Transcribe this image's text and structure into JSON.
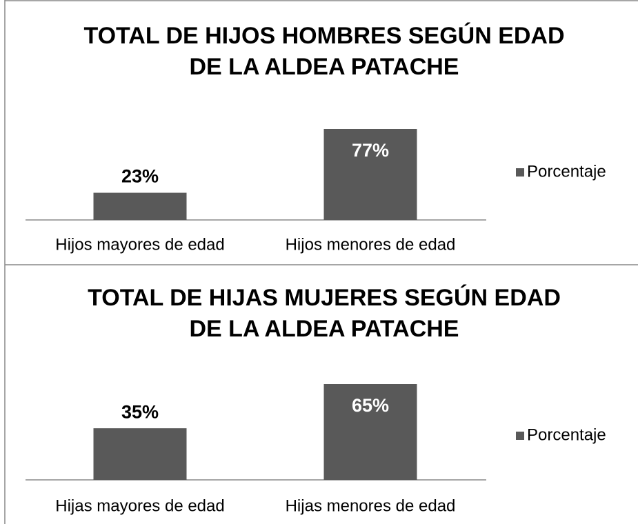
{
  "chart_data": [
    {
      "type": "bar",
      "title": "TOTAL DE HIJOS HOMBRES SEGÚN EDAD DE LA ALDEA PATACHE",
      "categories": [
        "Hijos mayores de edad",
        "Hijos menores de edad"
      ],
      "series": [
        {
          "name": "Porcentaje",
          "color": "#595959",
          "values": [
            23,
            77
          ],
          "value_labels": [
            "23%",
            "77%"
          ]
        }
      ],
      "legend": "right"
    },
    {
      "type": "bar",
      "title": "TOTAL DE HIJAS MUJERES SEGÚN EDAD DE LA ALDEA PATACHE",
      "categories": [
        "Hijas mayores de edad",
        "Hijas menores de edad"
      ],
      "series": [
        {
          "name": "Porcentaje",
          "color": "#595959",
          "values": [
            35,
            65
          ],
          "value_labels": [
            "35%",
            "65%"
          ]
        }
      ],
      "legend": "right"
    }
  ]
}
